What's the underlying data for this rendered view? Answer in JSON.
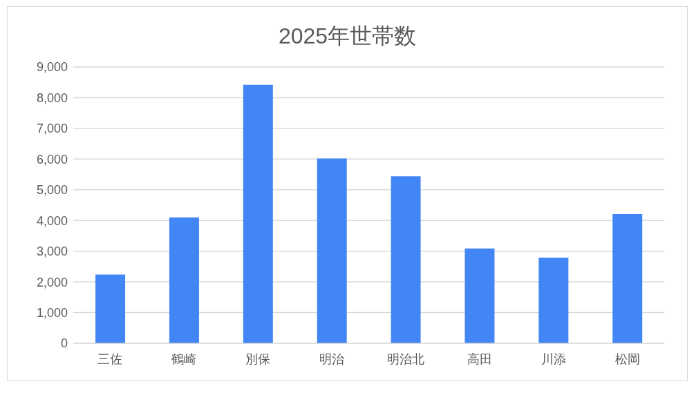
{
  "chart_data": {
    "type": "bar",
    "title": "2025年世帯数",
    "categories": [
      "三佐",
      "鶴崎",
      "別保",
      "明治",
      "明治北",
      "高田",
      "川添",
      "松岡"
    ],
    "values": [
      2240,
      4100,
      8420,
      6020,
      5440,
      3090,
      2790,
      4210
    ],
    "color": "#4285f4",
    "ylim": [
      0,
      9000
    ],
    "yticks": [
      0,
      {
        "value": 1000,
        "label": "1,000"
      },
      {
        "value": 2000,
        "label": "2,000"
      },
      {
        "value": 3000,
        "label": "3,000"
      },
      {
        "value": 4000,
        "label": "4,000"
      },
      {
        "value": 5000,
        "label": "5,000"
      },
      {
        "value": 6000,
        "label": "6,000"
      },
      {
        "value": 7000,
        "label": "7,000"
      },
      {
        "value": 8000,
        "label": "8,000"
      },
      {
        "value": 9000,
        "label": "9,000"
      }
    ],
    "grid": "y"
  }
}
